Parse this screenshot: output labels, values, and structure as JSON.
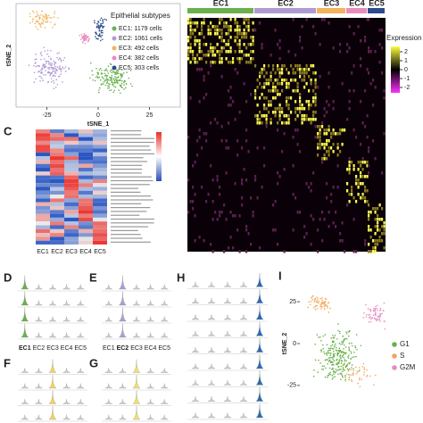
{
  "panel_labels": [
    "C",
    "D",
    "E",
    "F",
    "G",
    "H",
    "I"
  ],
  "chart_data": [
    {
      "type": "scatter",
      "x_label": "tSNE_1",
      "y_label": "tSNE_2",
      "legend_title": "Epithelial subtypes",
      "xlim": [
        -40,
        40
      ],
      "xticks": [
        -25,
        0,
        25
      ],
      "series": [
        {
          "name": "EC1: 1179 cells",
          "color": "#6ab04c"
        },
        {
          "name": "EC2: 1061 cells",
          "color": "#b09ad4"
        },
        {
          "name": "EC3: 492 cells",
          "color": "#f2b35c"
        },
        {
          "name": "EC4: 382 cells",
          "color": "#e88cc0"
        },
        {
          "name": "EC5: 303 cells",
          "color": "#2b4c8c"
        }
      ]
    },
    {
      "type": "heatmap",
      "categories": [
        "EC1",
        "EC2",
        "EC3",
        "EC4",
        "EC5"
      ],
      "colors": [
        "#6ab04c",
        "#b09ad4",
        "#f2b35c",
        "#e88cc0",
        "#2b4c8c"
      ],
      "legend_title": "Expression",
      "clim": [
        -2.6,
        2.6
      ],
      "cticks": [
        2,
        1,
        0,
        -1,
        -2
      ]
    },
    {
      "type": "heatmap",
      "categories": [
        "EC1",
        "EC2",
        "EC3",
        "EC4",
        "EC5"
      ]
    },
    {
      "type": "violin",
      "categories": [
        "EC1",
        "EC2",
        "EC3",
        "EC4",
        "EC5"
      ]
    },
    {
      "type": "violin",
      "categories": [
        "EC1",
        "EC2",
        "EC3",
        "EC4",
        "EC5"
      ]
    },
    {
      "type": "scatter",
      "y_label": "tSNE_2",
      "ylim": [
        -40,
        40
      ],
      "yticks": [
        25,
        0,
        -25
      ],
      "series": [
        {
          "name": "G1",
          "color": "#6ab04c"
        },
        {
          "name": "S",
          "color": "#f2a65a"
        },
        {
          "name": "G2M",
          "color": "#e88cc0"
        }
      ]
    }
  ]
}
